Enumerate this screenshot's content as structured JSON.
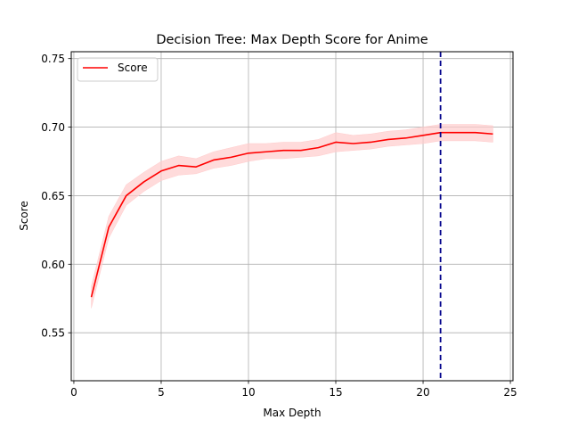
{
  "chart_data": {
    "type": "line",
    "title": "Decision Tree: Max Depth Score for Anime",
    "xlabel": "Max Depth",
    "ylabel": "Score",
    "xlim": [
      -0.15,
      25.15
    ],
    "ylim": [
      0.515,
      0.755
    ],
    "xticks": [
      0,
      5,
      10,
      15,
      20,
      25
    ],
    "xtick_labels": [
      "0",
      "5",
      "10",
      "15",
      "20",
      "25"
    ],
    "yticks": [
      0.55,
      0.6,
      0.65,
      0.7,
      0.75
    ],
    "ytick_labels": [
      "0.55",
      "0.60",
      "0.65",
      "0.70",
      "0.75"
    ],
    "grid": true,
    "legend": {
      "position": "top-left",
      "entries": [
        "Score"
      ]
    },
    "series": [
      {
        "name": "Score",
        "color": "#ff0000",
        "band_color": "#ffcccc",
        "x": [
          1,
          2,
          3,
          4,
          5,
          6,
          7,
          8,
          9,
          10,
          11,
          12,
          13,
          14,
          15,
          16,
          17,
          18,
          19,
          20,
          21,
          22,
          23,
          24
        ],
        "y": [
          0.576,
          0.627,
          0.65,
          0.66,
          0.668,
          0.672,
          0.671,
          0.676,
          0.678,
          0.681,
          0.682,
          0.683,
          0.683,
          0.685,
          0.689,
          0.688,
          0.689,
          0.691,
          0.692,
          0.694,
          0.696,
          0.696,
          0.696,
          0.695
        ],
        "y_lower": [
          0.568,
          0.619,
          0.643,
          0.653,
          0.661,
          0.665,
          0.666,
          0.67,
          0.672,
          0.675,
          0.677,
          0.677,
          0.678,
          0.679,
          0.682,
          0.683,
          0.684,
          0.686,
          0.687,
          0.688,
          0.69,
          0.69,
          0.69,
          0.689
        ],
        "y_upper": [
          0.584,
          0.635,
          0.658,
          0.667,
          0.675,
          0.679,
          0.677,
          0.682,
          0.685,
          0.688,
          0.688,
          0.689,
          0.689,
          0.691,
          0.696,
          0.694,
          0.695,
          0.697,
          0.698,
          0.7,
          0.702,
          0.702,
          0.702,
          0.701
        ]
      }
    ],
    "vlines": [
      {
        "x": 21,
        "color": "#00008b",
        "style": "dashed"
      }
    ]
  }
}
